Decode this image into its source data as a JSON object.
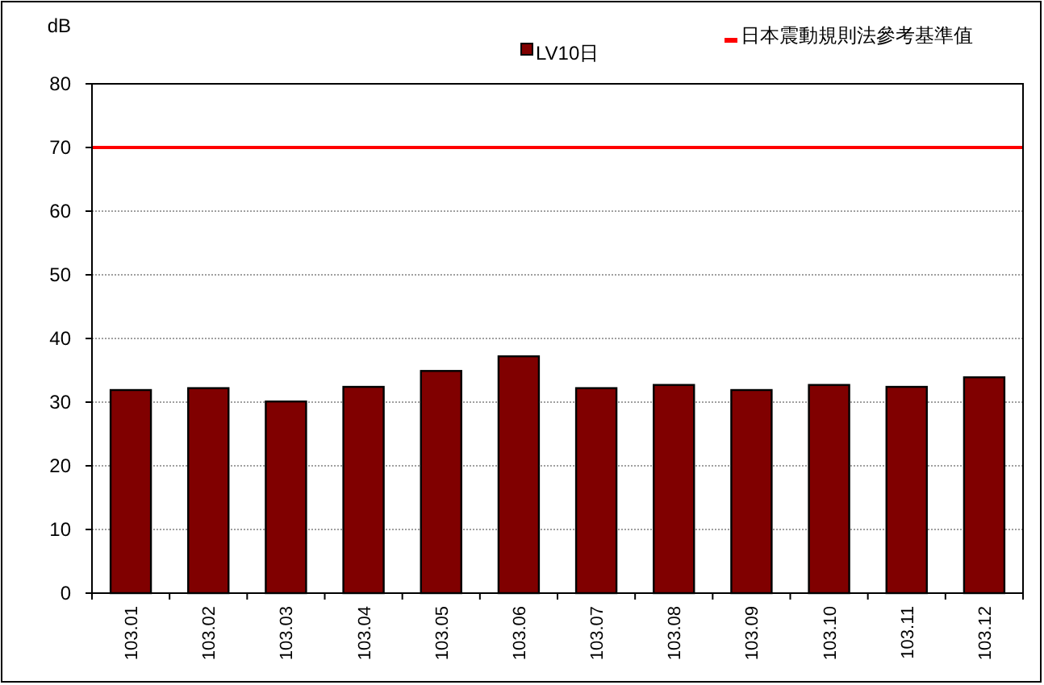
{
  "chart_data": {
    "type": "bar",
    "ylabel": "dB",
    "categories": [
      "103.01",
      "103.02",
      "103.03",
      "103.04",
      "103.05",
      "103.06",
      "103.07",
      "103.08",
      "103.09",
      "103.10",
      "103.11",
      "103.12"
    ],
    "series": [
      {
        "name": "LV10日",
        "color": "#800000",
        "values": [
          31.9,
          32.2,
          30.1,
          32.4,
          34.9,
          37.2,
          32.2,
          32.7,
          31.9,
          32.7,
          32.4,
          33.9
        ]
      }
    ],
    "ylim": [
      0,
      80
    ],
    "yticks": [
      0,
      10,
      20,
      30,
      40,
      50,
      60,
      70,
      80
    ],
    "ref_lines": [
      {
        "axis": "y",
        "value": 70,
        "label": "日本震動規則法參考基準值",
        "color": "#ff0000"
      }
    ],
    "grid": "y",
    "legend": "top"
  }
}
